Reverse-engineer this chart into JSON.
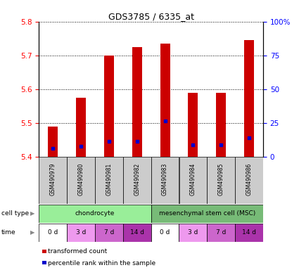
{
  "title": "GDS3785 / 6335_at",
  "samples": [
    "GSM490979",
    "GSM490980",
    "GSM490981",
    "GSM490982",
    "GSM490983",
    "GSM490984",
    "GSM490985",
    "GSM490986"
  ],
  "bar_values": [
    5.49,
    5.575,
    5.7,
    5.725,
    5.735,
    5.59,
    5.59,
    5.745
  ],
  "blue_dot_values": [
    5.425,
    5.43,
    5.445,
    5.445,
    5.505,
    5.435,
    5.435,
    5.455
  ],
  "ymin": 5.4,
  "ymax": 5.8,
  "yticks_left": [
    5.4,
    5.5,
    5.6,
    5.7,
    5.8
  ],
  "yticks_right_vals": [
    0,
    25,
    50,
    75,
    100
  ],
  "yticks_right_labels": [
    "0",
    "25",
    "50",
    "75",
    "100%"
  ],
  "bar_color": "#cc0000",
  "dot_color": "#0000cc",
  "bar_width": 0.35,
  "cell_types": [
    {
      "label": "chondrocyte",
      "span": [
        0,
        4
      ],
      "color": "#99ee99"
    },
    {
      "label": "mesenchymal stem cell (MSC)",
      "span": [
        4,
        8
      ],
      "color": "#77bb77"
    }
  ],
  "time_labels": [
    "0 d",
    "3 d",
    "7 d",
    "14 d",
    "0 d",
    "3 d",
    "7 d",
    "14 d"
  ],
  "time_colors": [
    "#ffffff",
    "#ee99ee",
    "#cc66cc",
    "#aa33aa",
    "#ffffff",
    "#ee99ee",
    "#cc66cc",
    "#aa33aa"
  ],
  "sample_bg_color": "#cccccc",
  "legend_items": [
    {
      "color": "#cc0000",
      "label": "transformed count"
    },
    {
      "color": "#0000cc",
      "label": "percentile rank within the sample"
    }
  ]
}
